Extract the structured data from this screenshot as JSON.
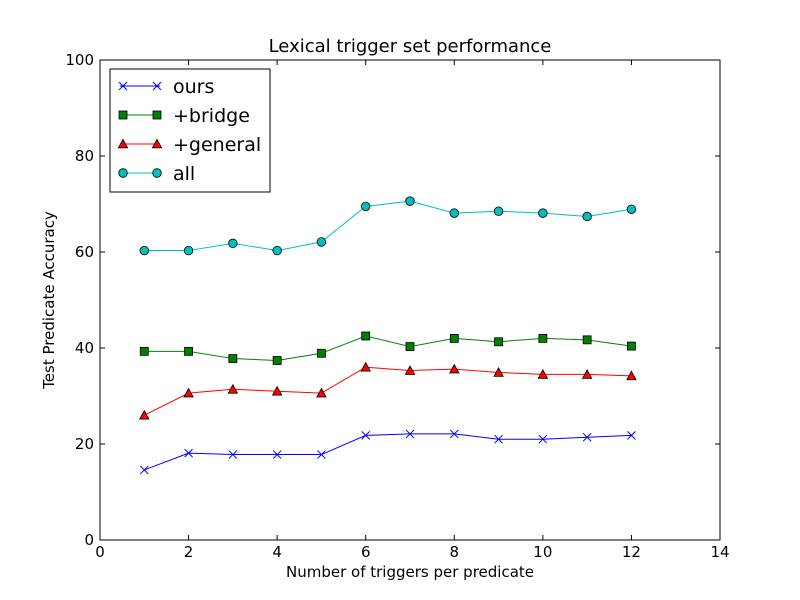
{
  "chart_data": {
    "type": "line",
    "title": "Lexical trigger set performance",
    "xlabel": "Number of triggers per predicate",
    "ylabel": "Test Predicate Accuracy",
    "xlim": [
      0,
      14
    ],
    "ylim": [
      0,
      100
    ],
    "xticks": [
      0,
      2,
      4,
      6,
      8,
      10,
      12,
      14
    ],
    "yticks": [
      0,
      20,
      40,
      60,
      80,
      100
    ],
    "grid": false,
    "legend_position": "top-left",
    "x": [
      1,
      2,
      3,
      4,
      5,
      6,
      7,
      8,
      9,
      10,
      11,
      12
    ],
    "series": [
      {
        "name": "ours",
        "color": "#0000ff",
        "marker": "x",
        "values": [
          14.6,
          18.1,
          17.8,
          17.8,
          17.8,
          21.8,
          22.1,
          22.1,
          21.0,
          21.0,
          21.4,
          21.8
        ]
      },
      {
        "name": "+bridge",
        "color": "#008000",
        "marker": "square",
        "values": [
          39.3,
          39.3,
          37.8,
          37.4,
          38.9,
          42.5,
          40.3,
          42.0,
          41.3,
          42.0,
          41.7,
          40.4
        ]
      },
      {
        "name": "+general",
        "color": "#ff0000",
        "marker": "triangle",
        "values": [
          26.0,
          30.6,
          31.4,
          31.0,
          30.6,
          36.0,
          35.3,
          35.6,
          34.9,
          34.5,
          34.5,
          34.2
        ]
      },
      {
        "name": "all",
        "color": "#00bfbf",
        "marker": "circle",
        "values": [
          60.3,
          60.3,
          61.8,
          60.3,
          62.1,
          69.5,
          70.6,
          68.1,
          68.5,
          68.1,
          67.4,
          68.9
        ]
      }
    ]
  }
}
